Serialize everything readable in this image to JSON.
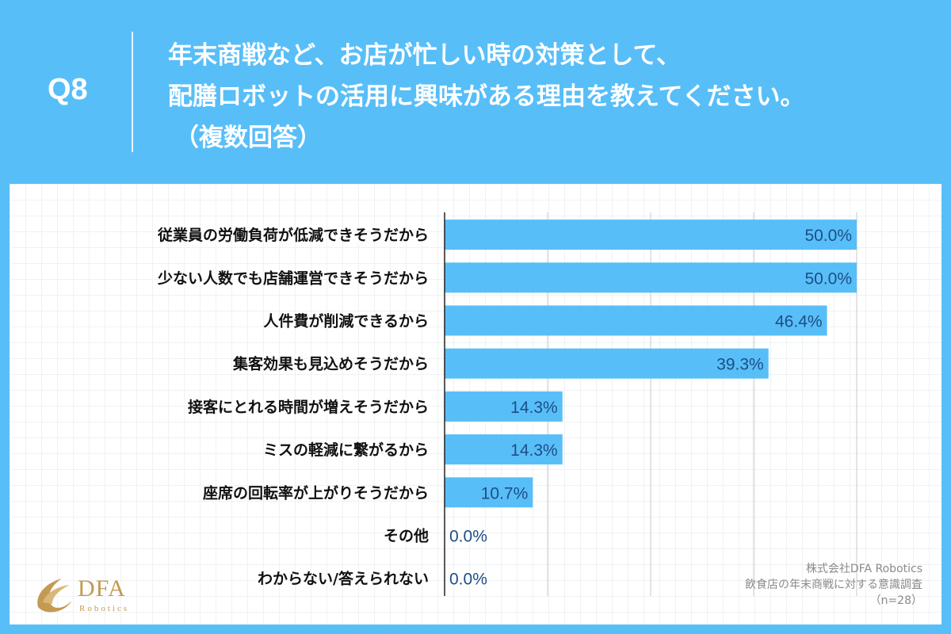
{
  "header": {
    "q_label": "Q8",
    "title_line1": "年末商戦など、お店が忙しい時の対策として、",
    "title_line2": "配膳ロボットの活用に興味がある理由を教えてください。",
    "title_line3": "（複数回答）"
  },
  "logo": {
    "name": "DFA",
    "sub": "Robotics",
    "icon": "dfa-swoosh-logo"
  },
  "source": {
    "company": "株式会社DFA Robotics",
    "survey": "飲食店の年末商戦に対する意識調査",
    "n": "（n=28）"
  },
  "colors": {
    "background": "#58BEF8",
    "bar": "#58BEF8",
    "value_text": "#1e4e86"
  },
  "chart_data": {
    "type": "bar",
    "orientation": "horizontal",
    "categories": [
      "従業員の労働負荷が低減できそうだから",
      "少ない人数でも店舗運営できそうだから",
      "人件費が削減できるから",
      "集客効果も見込めそうだから",
      "接客にとれる時間が増えそうだから",
      "ミスの軽減に繋がるから",
      "座席の回転率が上がりそうだから",
      "その他",
      "わからない/答えられない"
    ],
    "values": [
      50.0,
      50.0,
      46.4,
      39.3,
      14.3,
      14.3,
      10.7,
      0.0,
      0.0
    ],
    "value_labels": [
      "50.0%",
      "50.0%",
      "46.4%",
      "39.3%",
      "14.3%",
      "14.3%",
      "10.7%",
      "0.0%",
      "0.0%"
    ],
    "xlim": [
      0,
      50
    ],
    "grid": true
  }
}
